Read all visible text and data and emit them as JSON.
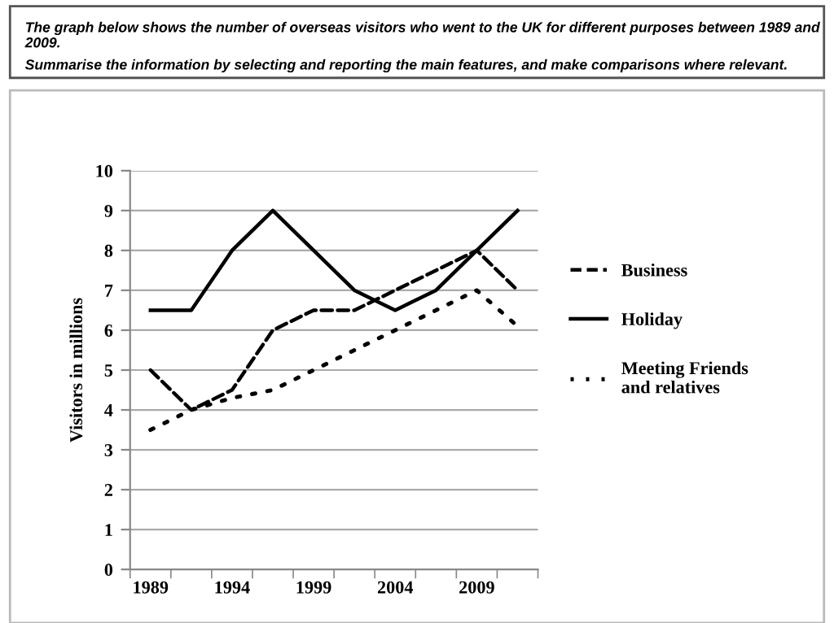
{
  "chart_data": {
    "type": "line",
    "title": "The graph below shows the number of overseas visitors who went to the UK for different purposes between 1989 and 2009.",
    "subtitle": "Summarise the information by selecting and reporting the main features, and make comparisons where relevant.",
    "ylabel": "Visitors in millions",
    "categories": [
      "1989",
      null,
      "1994",
      null,
      "1999",
      null,
      "2004",
      null,
      "2009",
      null
    ],
    "series": [
      {
        "name": "Business",
        "color": "#000000",
        "line_style": "dashed",
        "values": [
          5,
          4,
          4.5,
          6,
          6.5,
          6.5,
          7,
          7.5,
          8,
          7
        ]
      },
      {
        "name": "Holiday",
        "color": "#000000",
        "line_style": "solid",
        "values": [
          6.5,
          6.5,
          8,
          9,
          8,
          7,
          6.5,
          7,
          8,
          9
        ]
      },
      {
        "name": "Meeting Friends and relatives",
        "color": "#000000",
        "line_style": "dotted",
        "values": [
          3.5,
          4,
          4.3,
          4.5,
          5,
          5.5,
          6,
          6.5,
          7,
          6.1
        ]
      }
    ],
    "ylim": [
      0,
      10
    ],
    "yticks": [
      0,
      1,
      2,
      3,
      4,
      5,
      6,
      7,
      8,
      9,
      10
    ],
    "grid": "y",
    "legend": "right",
    "marker": "none"
  }
}
